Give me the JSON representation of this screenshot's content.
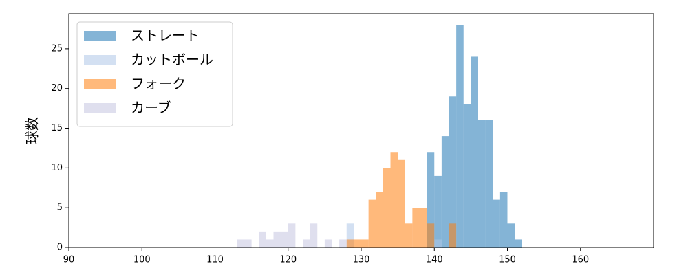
{
  "chart_data": {
    "type": "histogram",
    "ylabel": "球数",
    "xlim": [
      90,
      170
    ],
    "ylim": [
      0,
      29.4
    ],
    "xticks": [
      90,
      100,
      110,
      120,
      130,
      140,
      150,
      160
    ],
    "yticks": [
      0,
      5,
      10,
      15,
      20,
      25
    ],
    "legend": "upper left",
    "series": [
      {
        "name": "ストレート",
        "color": "#1f77b4",
        "bins": [
          139,
          140,
          141,
          142,
          143,
          144,
          145,
          146,
          147,
          148,
          149,
          150,
          151,
          152
        ],
        "values": [
          12,
          9,
          14,
          19,
          28,
          18,
          24,
          16,
          16,
          6,
          7,
          3,
          1
        ]
      },
      {
        "name": "カットボール",
        "color": "#aec7e8",
        "bins": [
          128,
          129,
          130,
          131,
          132,
          133,
          134,
          135,
          136,
          137,
          138,
          139,
          140,
          141
        ],
        "values": [
          3,
          0,
          0,
          0,
          0,
          0,
          0,
          0,
          0,
          0,
          0,
          0,
          1
        ]
      },
      {
        "name": "フォーク",
        "color": "#ff7f0e",
        "bins": [
          128,
          129,
          130,
          131,
          132,
          133,
          134,
          135,
          136,
          137,
          138,
          139,
          140,
          141,
          142,
          143
        ],
        "values": [
          1,
          1,
          1,
          6,
          7,
          10,
          12,
          11,
          3,
          5,
          5,
          3,
          0,
          0,
          3
        ]
      },
      {
        "name": "カーブ",
        "color": "#c5c5e0",
        "bins": [
          113,
          114,
          115,
          116,
          117,
          118,
          119,
          120,
          121,
          122,
          123,
          124,
          125,
          126,
          127,
          128
        ],
        "values": [
          1,
          1,
          0,
          2,
          1,
          2,
          2,
          3,
          0,
          1,
          3,
          0,
          1,
          0,
          1
        ]
      }
    ]
  }
}
